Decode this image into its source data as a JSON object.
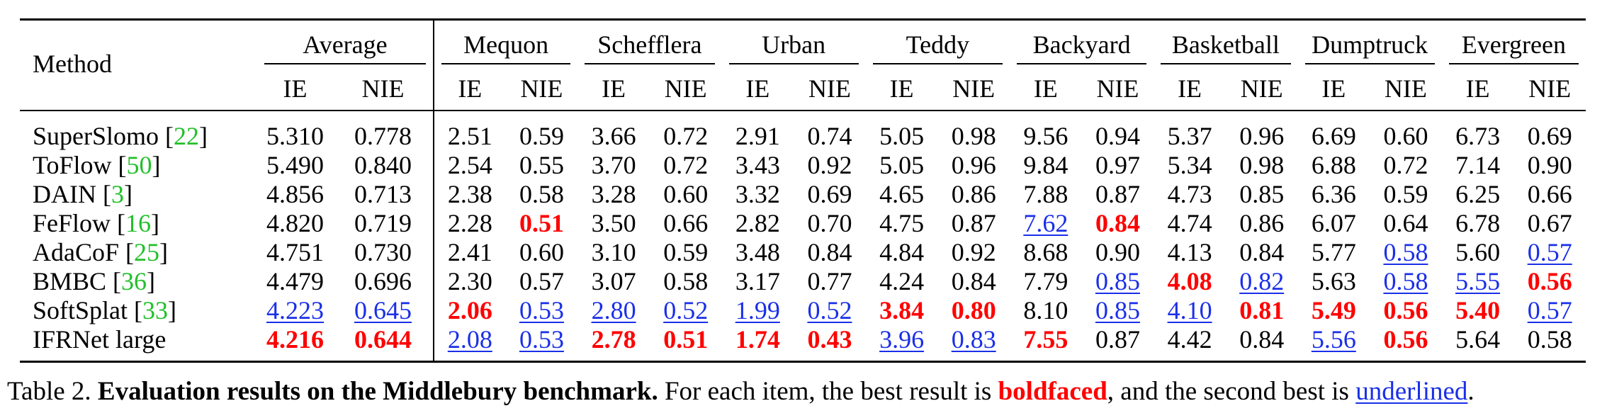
{
  "table": {
    "method_header": "Method",
    "groups": [
      "Average",
      "Mequon",
      "Schefflera",
      "Urban",
      "Teddy",
      "Backyard",
      "Basketball",
      "Dumptruck",
      "Evergreen"
    ],
    "metric_labels": [
      "IE",
      "NIE"
    ],
    "rows": [
      {
        "name": "SuperSlomo",
        "cite": "22",
        "values": [
          "5.310",
          "0.778",
          "2.51",
          "0.59",
          "3.66",
          "0.72",
          "2.91",
          "0.74",
          "5.05",
          "0.98",
          "9.56",
          "0.94",
          "5.37",
          "0.96",
          "6.69",
          "0.60",
          "6.73",
          "0.69"
        ],
        "marks": [
          "",
          "",
          "",
          "",
          "",
          "",
          "",
          "",
          "",
          "",
          "",
          "",
          "",
          "",
          "",
          "",
          "",
          ""
        ]
      },
      {
        "name": "ToFlow",
        "cite": "50",
        "values": [
          "5.490",
          "0.840",
          "2.54",
          "0.55",
          "3.70",
          "0.72",
          "3.43",
          "0.92",
          "5.05",
          "0.96",
          "9.84",
          "0.97",
          "5.34",
          "0.98",
          "6.88",
          "0.72",
          "7.14",
          "0.90"
        ],
        "marks": [
          "",
          "",
          "",
          "",
          "",
          "",
          "",
          "",
          "",
          "",
          "",
          "",
          "",
          "",
          "",
          "",
          "",
          ""
        ]
      },
      {
        "name": "DAIN",
        "cite": "3",
        "values": [
          "4.856",
          "0.713",
          "2.38",
          "0.58",
          "3.28",
          "0.60",
          "3.32",
          "0.69",
          "4.65",
          "0.86",
          "7.88",
          "0.87",
          "4.73",
          "0.85",
          "6.36",
          "0.59",
          "6.25",
          "0.66"
        ],
        "marks": [
          "",
          "",
          "",
          "",
          "",
          "",
          "",
          "",
          "",
          "",
          "",
          "",
          "",
          "",
          "",
          "",
          "",
          ""
        ]
      },
      {
        "name": "FeFlow",
        "cite": "16",
        "values": [
          "4.820",
          "0.719",
          "2.28",
          "0.51",
          "3.50",
          "0.66",
          "2.82",
          "0.70",
          "4.75",
          "0.87",
          "7.62",
          "0.84",
          "4.74",
          "0.86",
          "6.07",
          "0.64",
          "6.78",
          "0.67"
        ],
        "marks": [
          "",
          "",
          "",
          "best",
          "",
          "",
          "",
          "",
          "",
          "",
          "second",
          "best",
          "",
          "",
          "",
          "",
          "",
          ""
        ]
      },
      {
        "name": "AdaCoF",
        "cite": "25",
        "values": [
          "4.751",
          "0.730",
          "2.41",
          "0.60",
          "3.10",
          "0.59",
          "3.48",
          "0.84",
          "4.84",
          "0.92",
          "8.68",
          "0.90",
          "4.13",
          "0.84",
          "5.77",
          "0.58",
          "5.60",
          "0.57"
        ],
        "marks": [
          "",
          "",
          "",
          "",
          "",
          "",
          "",
          "",
          "",
          "",
          "",
          "",
          "",
          "",
          "",
          "second",
          "",
          "second"
        ]
      },
      {
        "name": "BMBC",
        "cite": "36",
        "values": [
          "4.479",
          "0.696",
          "2.30",
          "0.57",
          "3.07",
          "0.58",
          "3.17",
          "0.77",
          "4.24",
          "0.84",
          "7.79",
          "0.85",
          "4.08",
          "0.82",
          "5.63",
          "0.58",
          "5.55",
          "0.56"
        ],
        "marks": [
          "",
          "",
          "",
          "",
          "",
          "",
          "",
          "",
          "",
          "",
          "",
          "second",
          "best",
          "second",
          "",
          "second",
          "second",
          "best"
        ]
      },
      {
        "name": "SoftSplat",
        "cite": "33",
        "values": [
          "4.223",
          "0.645",
          "2.06",
          "0.53",
          "2.80",
          "0.52",
          "1.99",
          "0.52",
          "3.84",
          "0.80",
          "8.10",
          "0.85",
          "4.10",
          "0.81",
          "5.49",
          "0.56",
          "5.40",
          "0.57"
        ],
        "marks": [
          "second",
          "second",
          "best",
          "second",
          "second",
          "second",
          "second",
          "second",
          "best",
          "best",
          "",
          "second",
          "second",
          "best",
          "best",
          "best",
          "best",
          "second"
        ]
      },
      {
        "name": "IFRNet large",
        "cite": "",
        "values": [
          "4.216",
          "0.644",
          "2.08",
          "0.53",
          "2.78",
          "0.51",
          "1.74",
          "0.43",
          "3.96",
          "0.83",
          "7.55",
          "0.87",
          "4.42",
          "0.84",
          "5.56",
          "0.56",
          "5.64",
          "0.58"
        ],
        "marks": [
          "best",
          "best",
          "second",
          "second",
          "best",
          "best",
          "best",
          "best",
          "second",
          "second",
          "best",
          "",
          "",
          "",
          "second",
          "best",
          "",
          ""
        ]
      }
    ]
  },
  "caption": {
    "prefix": "Table 2.",
    "title": "Evaluation results on the Middlebury benchmark.",
    "text1": "For each item, the best result is",
    "best_word": "boldfaced",
    "text2": ", and the second best is",
    "second_word": "underlined",
    "end": "."
  },
  "colors": {
    "best": "#ff0000",
    "second": "#1a2fe8",
    "citation": "#22c02a"
  }
}
